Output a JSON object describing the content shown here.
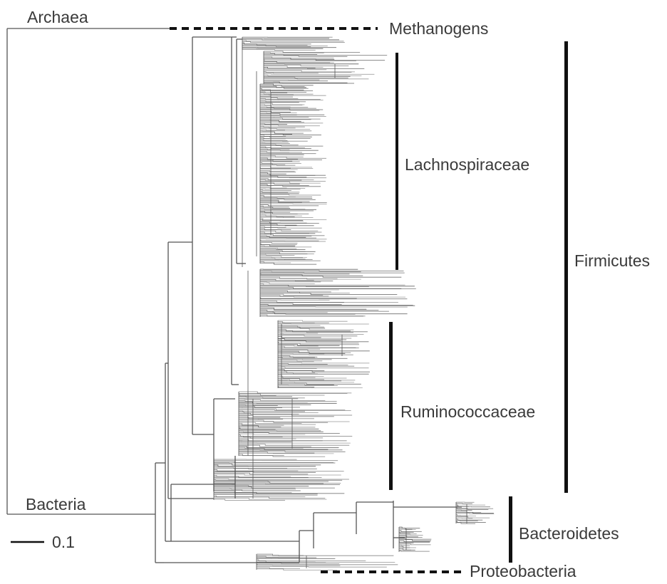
{
  "domains": {
    "archaea": "Archaea",
    "bacteria": "Bacteria"
  },
  "clades": {
    "methanogens": "Methanogens",
    "lachnospiraceae": "Lachnospiraceae",
    "ruminococcaceae": "Ruminococcaceae",
    "firmicutes": "Firmicutes",
    "bacteroidetes": "Bacteroidetes",
    "proteobacteria": "Proteobacteria"
  },
  "scale_bar": {
    "label": "0.1"
  },
  "colors": {
    "branch": "#555555",
    "bar": "#111111",
    "text": "#3a3a3a"
  }
}
